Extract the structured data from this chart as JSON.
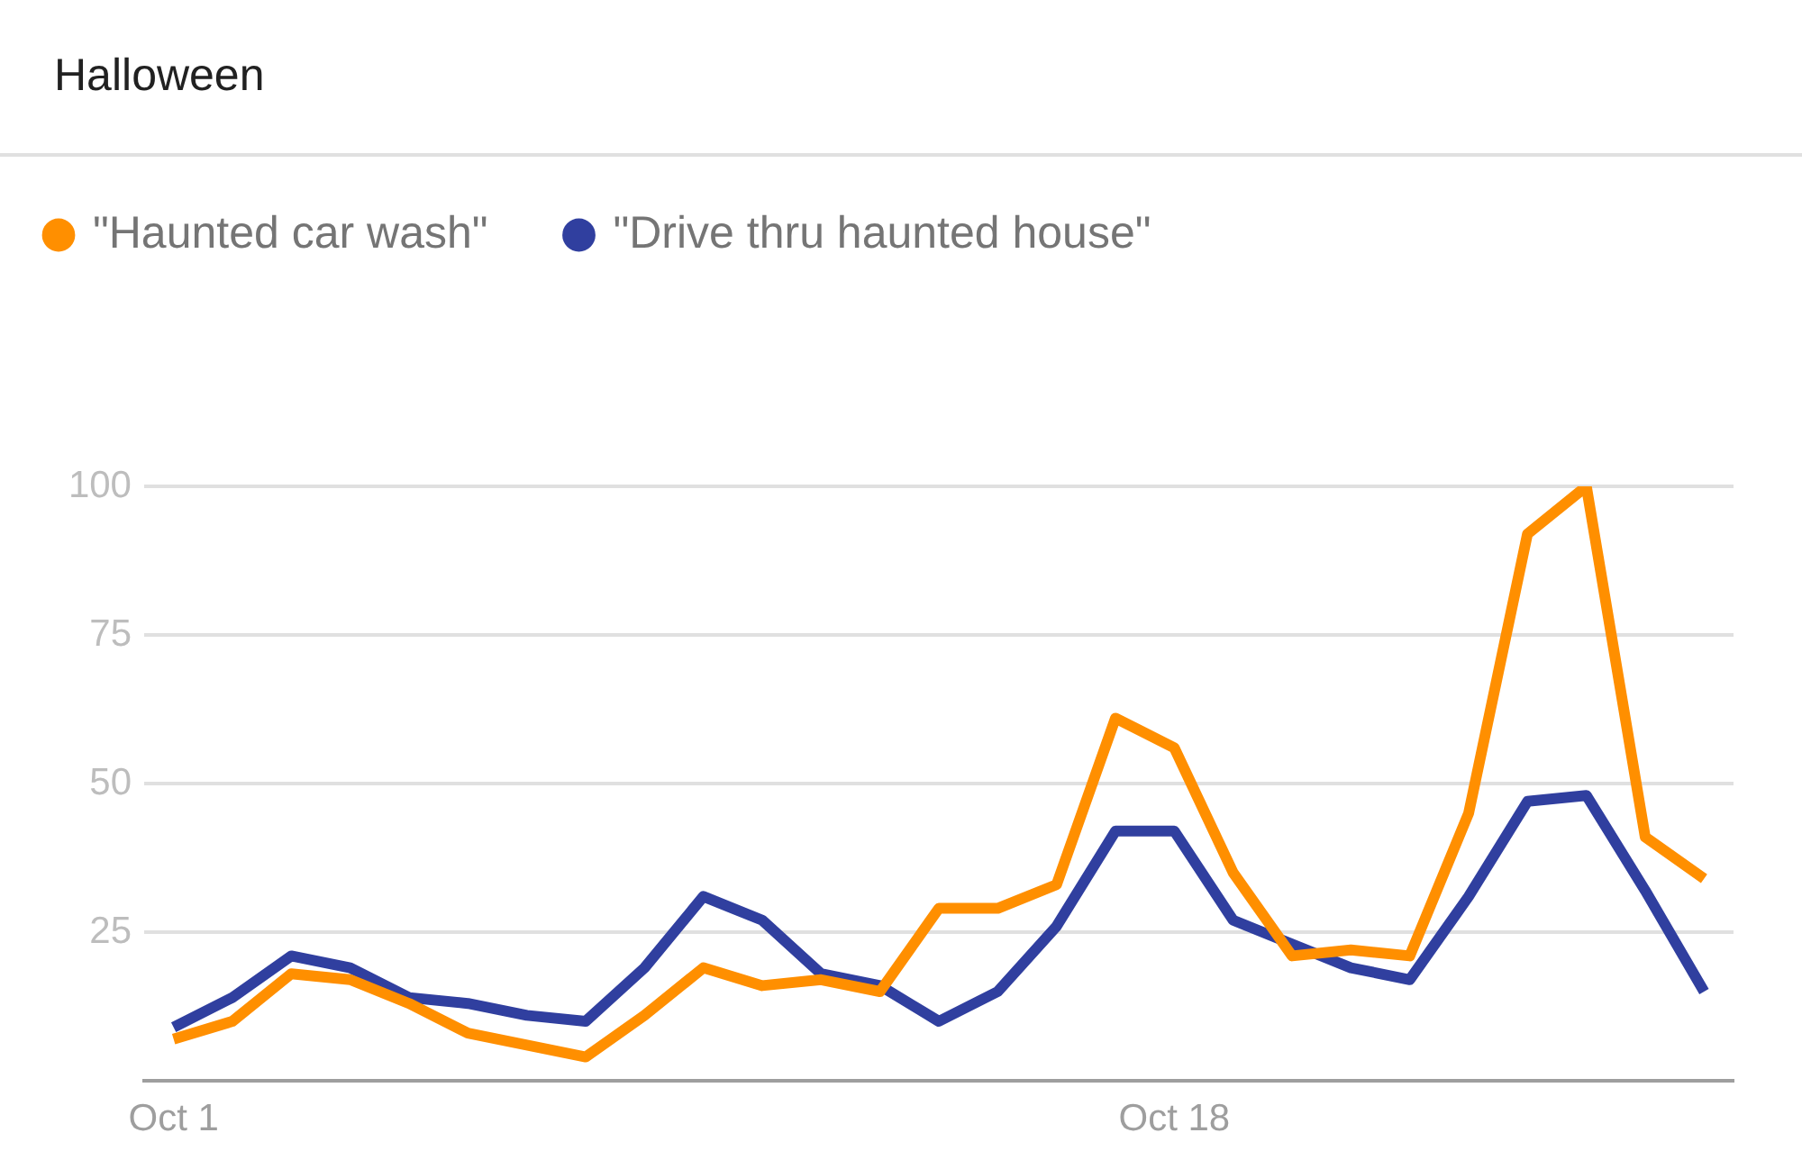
{
  "chart_data": {
    "type": "line",
    "title": "Halloween",
    "categories": [
      "Oct 1",
      null,
      null,
      null,
      null,
      null,
      null,
      null,
      null,
      null,
      null,
      null,
      null,
      null,
      null,
      null,
      null,
      "Oct 18",
      null,
      null,
      null,
      null,
      null,
      null,
      null,
      null,
      null
    ],
    "series": [
      {
        "name": "\"Haunted car wash\"",
        "color": "#ff8f00",
        "values": [
          7,
          10,
          18,
          17,
          13,
          8,
          6,
          4,
          11,
          19,
          16,
          17,
          15,
          29,
          29,
          33,
          61,
          56,
          35,
          21,
          22,
          21,
          45,
          92,
          100,
          41,
          34
        ]
      },
      {
        "name": "\"Drive thru haunted house\"",
        "color": "#303f9f",
        "values": [
          9,
          14,
          21,
          19,
          14,
          13,
          11,
          10,
          19,
          31,
          27,
          18,
          16,
          10,
          15,
          26,
          42,
          42,
          27,
          23,
          19,
          17,
          31,
          47,
          48,
          32,
          15
        ]
      }
    ],
    "ylim": [
      0,
      100
    ],
    "yticks": [
      25,
      50,
      75,
      100
    ],
    "grid": "y",
    "legend": "top left",
    "marker": "none",
    "line_style": "solid"
  }
}
